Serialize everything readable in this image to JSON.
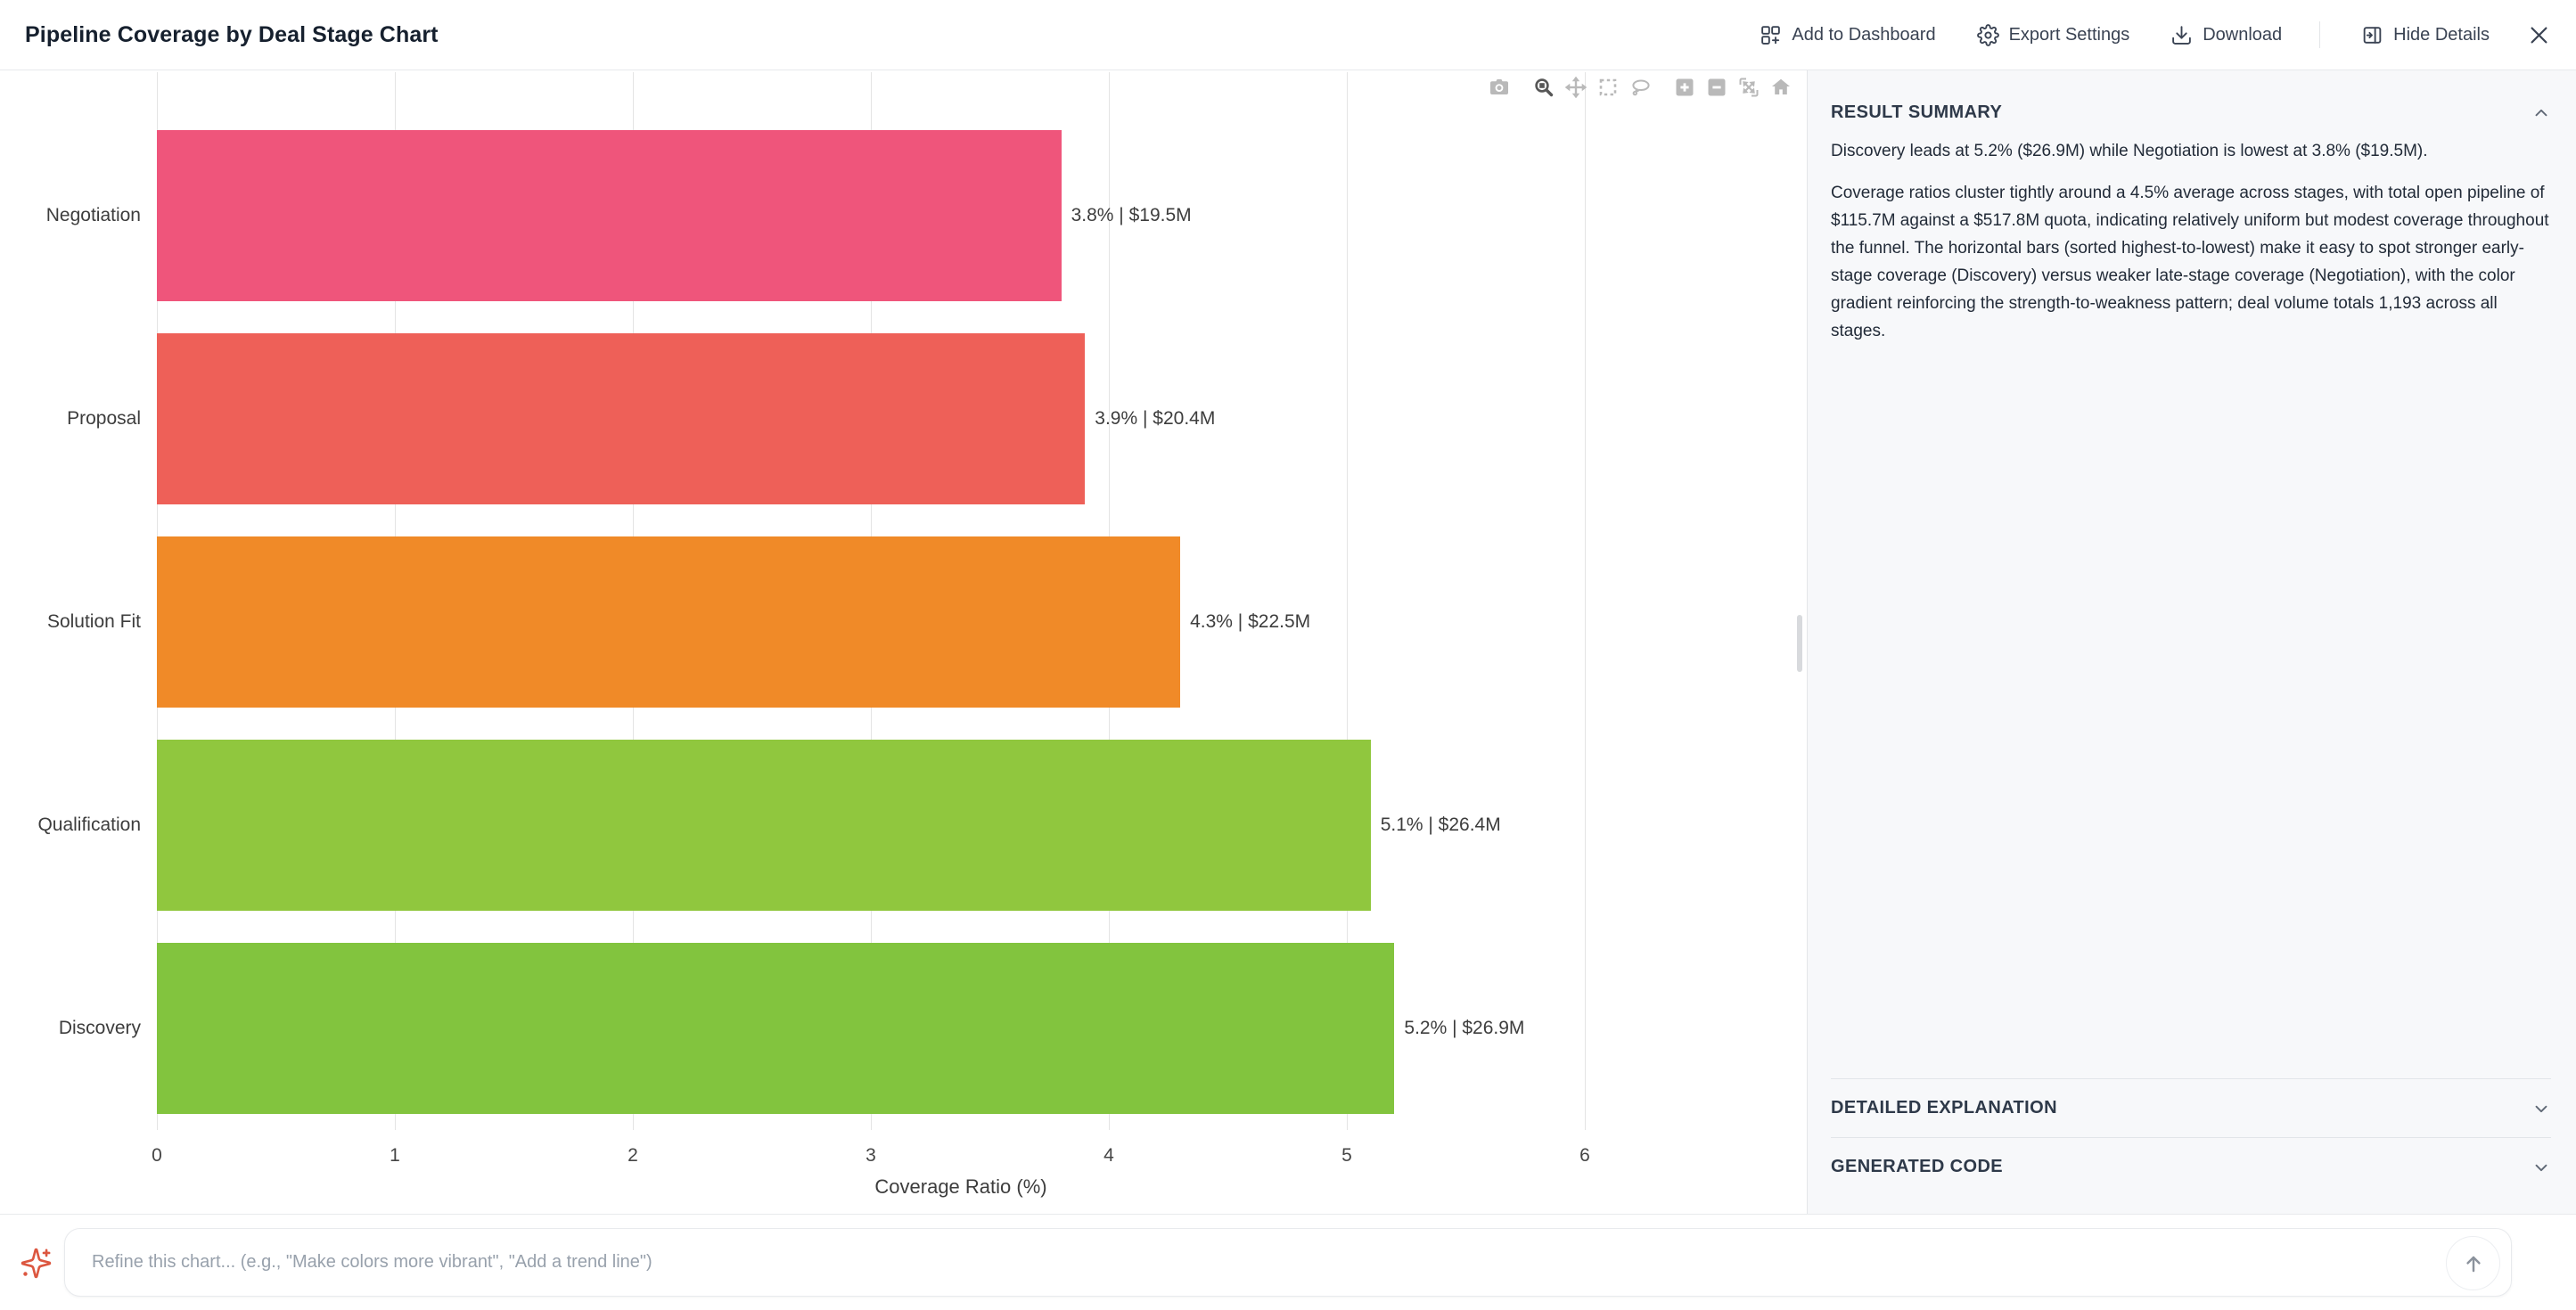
{
  "header": {
    "title": "Pipeline Coverage by Deal Stage Chart",
    "actions": [
      {
        "label": "Add to Dashboard",
        "icon": "dashboard-add-icon"
      },
      {
        "label": "Export Settings",
        "icon": "gear-icon"
      },
      {
        "label": "Download",
        "icon": "download-icon"
      },
      {
        "label": "Hide Details",
        "icon": "panel-collapse-icon"
      }
    ]
  },
  "modebar": {
    "tools": [
      "camera",
      "zoom",
      "pan",
      "box-select",
      "lasso",
      "zoom-in",
      "zoom-out",
      "autoscale",
      "reset-axes"
    ],
    "active_tool": "zoom"
  },
  "chart_data": {
    "type": "bar",
    "orientation": "horizontal",
    "categories": [
      "Negotiation",
      "Proposal",
      "Solution Fit",
      "Qualification",
      "Discovery"
    ],
    "values": [
      3.8,
      3.9,
      4.3,
      5.1,
      5.2
    ],
    "bar_labels": [
      "3.8% | $19.5M",
      "3.9% | $20.4M",
      "4.3% | $22.5M",
      "5.1% | $26.4M",
      "5.2% | $26.9M"
    ],
    "pipeline_amounts": [
      "$19.5M",
      "$20.4M",
      "$22.5M",
      "$26.4M",
      "$26.9M"
    ],
    "bar_colors": [
      "#ef557b",
      "#ee6058",
      "#f08a28",
      "#90c73e",
      "#82c43e"
    ],
    "xlabel": "Coverage Ratio (%)",
    "x_ticks": [
      0,
      1,
      2,
      3,
      4,
      5,
      6
    ],
    "xlim": [
      0,
      6.75
    ],
    "grid": true,
    "legend": "none"
  },
  "details": {
    "result_summary": {
      "title": "RESULT SUMMARY",
      "paragraphs": [
        "Discovery leads at 5.2% ($26.9M) while Negotiation is lowest at 3.8% ($19.5M).",
        "Coverage ratios cluster tightly around a 4.5% average across stages, with total open pipeline of $115.7M against a $517.8M quota, indicating relatively uniform but modest coverage throughout the funnel. The horizontal bars (sorted highest-to-lowest) make it easy to spot stronger early-stage coverage (Discovery) versus weaker late-stage coverage (Negotiation), with the color gradient reinforcing the strength-to-weakness pattern; deal volume totals 1,193 across all stages."
      ]
    },
    "sections": [
      {
        "title": "DETAILED EXPLANATION",
        "state": "collapsed"
      },
      {
        "title": "GENERATED CODE",
        "state": "collapsed"
      }
    ]
  },
  "composer": {
    "placeholder": "Refine this chart... (e.g., \"Make colors more vibrant\", \"Add a trend line\")",
    "accent_color": "#dc5740"
  }
}
